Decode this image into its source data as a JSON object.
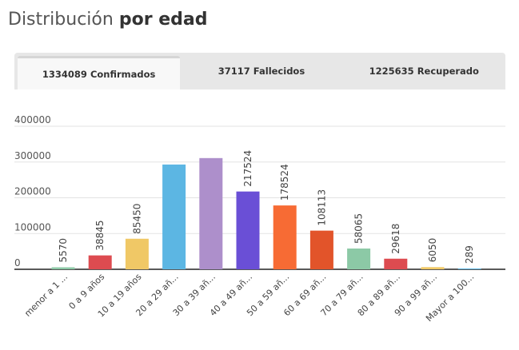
{
  "header": {
    "title_light": "Distribución",
    "title_bold": "por edad"
  },
  "tabs": [
    {
      "label": "1334089 Confirmados",
      "active": true
    },
    {
      "label": "37117 Fallecidos",
      "active": false
    },
    {
      "label": "1225635 Recuperado",
      "active": false
    }
  ],
  "chart_data": {
    "type": "bar",
    "categories": [
      "menor a 1 ...",
      "0 a 9 años",
      "10 a 19 años",
      "20 a 29 añ...",
      "30 a 39 añ...",
      "40 a 49 añ...",
      "50 a 59 añ...",
      "60 a 69 añ...",
      "70 a 79 añ...",
      "80 a 89 añ...",
      "90 a 99 añ...",
      "Mayor a 100..."
    ],
    "values": [
      5570,
      38845,
      85450,
      293000,
      311000,
      217524,
      178524,
      108113,
      58065,
      29618,
      6050,
      289
    ],
    "data_labels": [
      "5570",
      "38845",
      "85450",
      "",
      "",
      "217524",
      "178524",
      "108113",
      "58065",
      "29618",
      "6050",
      "289"
    ],
    "colors": [
      "#8cc9a6",
      "#dd4b50",
      "#f0c866",
      "#5cb6e3",
      "#ad8fcb",
      "#6a4fd6",
      "#f76b34",
      "#e2542a",
      "#8cc9a6",
      "#dd4b50",
      "#f0c866",
      "#5cb6e3"
    ],
    "yticks": [
      "400000",
      "300000",
      "200000",
      "100000",
      "0"
    ],
    "ylim": [
      0,
      400000
    ],
    "grid": true
  }
}
